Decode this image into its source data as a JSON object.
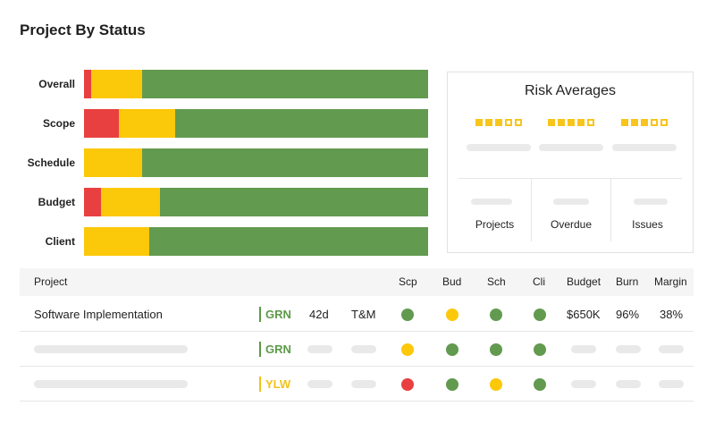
{
  "page": {
    "title": "Project By Status"
  },
  "colors": {
    "red": "#e84040",
    "yellow": "#fcc80a",
    "green": "#629a50",
    "yellow_text": "#f2c21a",
    "green_text": "#5b9a48"
  },
  "status_bars": [
    {
      "label": "Overall",
      "red": 0.02,
      "yellow": 0.15,
      "green": 0.83
    },
    {
      "label": "Scope",
      "red": 0.1,
      "yellow": 0.165,
      "green": 0.735
    },
    {
      "label": "Schedule",
      "red": 0.0,
      "yellow": 0.17,
      "green": 0.83
    },
    {
      "label": "Budget",
      "red": 0.05,
      "yellow": 0.17,
      "green": 0.78
    },
    {
      "label": "Client",
      "red": 0.0,
      "yellow": 0.19,
      "green": 0.81
    }
  ],
  "risk": {
    "title": "Risk Averages",
    "ratings": [
      3,
      4,
      3
    ],
    "max_rating": 5,
    "columns": [
      "Projects",
      "Overdue",
      "Issues"
    ]
  },
  "table": {
    "headers": {
      "project": "Project",
      "scp": "Scp",
      "bud": "Bud",
      "sch": "Sch",
      "cli": "Cli",
      "budget": "Budget",
      "burn": "Burn",
      "margin": "Margin"
    },
    "rows": [
      {
        "project": "Software Implementation",
        "status": "GRN",
        "duration": "42d",
        "type": "T&M",
        "scp": "green",
        "bud": "yellow",
        "sch": "green",
        "cli": "green",
        "budget": "$650K",
        "burn": "96%",
        "margin": "38%"
      },
      {
        "project": "",
        "status": "GRN",
        "scp": "yellow",
        "bud": "green",
        "sch": "green",
        "cli": "green"
      },
      {
        "project": "",
        "status": "YLW",
        "scp": "red",
        "bud": "green",
        "sch": "yellow",
        "cli": "green"
      }
    ]
  }
}
